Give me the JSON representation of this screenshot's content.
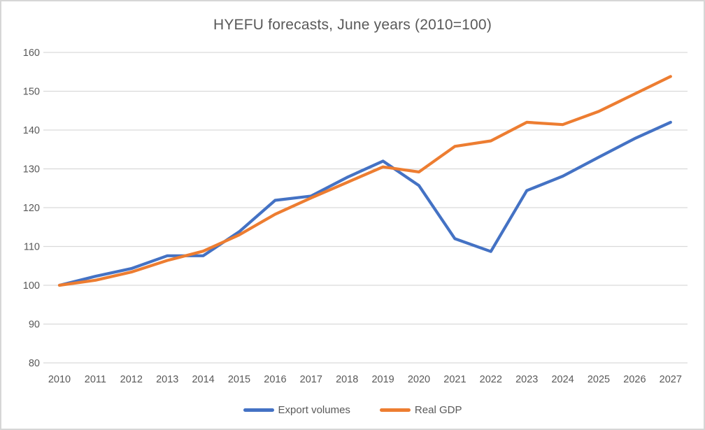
{
  "chart_data": {
    "type": "line",
    "title": "HYEFU forecasts, June years (2010=100)",
    "categories": [
      "2010",
      "2011",
      "2012",
      "2013",
      "2014",
      "2015",
      "2016",
      "2017",
      "2018",
      "2019",
      "2020",
      "2021",
      "2022",
      "2023",
      "2024",
      "2025",
      "2026",
      "2027"
    ],
    "series": [
      {
        "name": "Export volumes",
        "color": "#4472C4",
        "values": [
          100,
          102.3,
          104.3,
          107.6,
          107.6,
          113.8,
          121.9,
          123.0,
          127.8,
          132.0,
          125.7,
          112.0,
          108.7,
          124.4,
          128.1,
          133.0,
          137.8,
          142.0
        ]
      },
      {
        "name": "Real GDP",
        "color": "#ED7D31",
        "values": [
          100,
          101.3,
          103.4,
          106.4,
          108.8,
          113.0,
          118.3,
          122.5,
          126.5,
          130.5,
          129.2,
          135.8,
          137.2,
          142.0,
          141.4,
          144.8,
          149.3,
          153.8
        ]
      }
    ],
    "xlabel": "",
    "ylabel": "",
    "ylim": [
      80,
      160
    ],
    "yticks": [
      160,
      150,
      140,
      130,
      120,
      110,
      100,
      90,
      80
    ],
    "grid": "horizontal",
    "legend_position": "bottom-center",
    "colors": {
      "grid": "#D9D9D9",
      "text": "#595959",
      "frame": "#D6D6D6",
      "background": "#FFFFFF"
    }
  }
}
